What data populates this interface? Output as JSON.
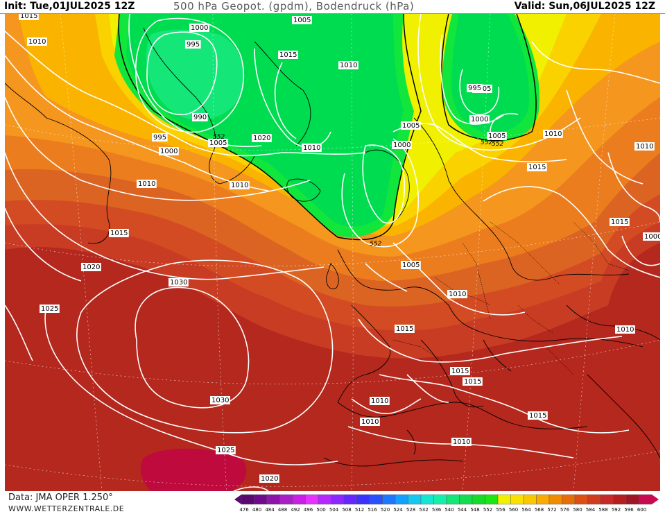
{
  "header": {
    "init": "Init: Tue,01JUL2025 12Z",
    "title": "500 hPa Geopot. (gpdm), Bodendruck (hPa)",
    "valid": "Valid: Sun,06JUL2025 12Z"
  },
  "footer": {
    "data_source": "Data: JMA OPER 1.250°",
    "website": "WWW.WETTERZENTRALE.DE"
  },
  "legend": {
    "values": [
      "476",
      "480",
      "484",
      "488",
      "492",
      "496",
      "500",
      "504",
      "508",
      "512",
      "516",
      "520",
      "524",
      "528",
      "532",
      "536",
      "540",
      "544",
      "548",
      "552",
      "556",
      "560",
      "564",
      "568",
      "572",
      "576",
      "580",
      "584",
      "588",
      "592",
      "596",
      "600"
    ],
    "colors": [
      "#5a0a6e",
      "#6e0a8c",
      "#8c14a8",
      "#aa1ec8",
      "#c81ee6",
      "#e632ff",
      "#b428ff",
      "#8c28ff",
      "#6428ff",
      "#3c32ff",
      "#2850ff",
      "#1e78ff",
      "#14a0ff",
      "#14c8f0",
      "#14e6d2",
      "#14f0aa",
      "#14e678",
      "#14dc50",
      "#14dc28",
      "#1ee614",
      "#f0f000",
      "#fae100",
      "#fac800",
      "#faaa00",
      "#f08c00",
      "#e66e0a",
      "#dc5014",
      "#d23c1e",
      "#c82828",
      "#b41e1e",
      "#a01428",
      "#c80a50"
    ]
  },
  "map": {
    "height_colors": {
      "h552": "#00dc50",
      "h556": "#10e63c",
      "h560": "#f0f000",
      "h564": "#fad200",
      "h568": "#fab400",
      "h572": "#f5961e",
      "h576": "#eb7d1e",
      "h580": "#dc6423",
      "h584": "#d24b23",
      "h588": "#c83c23",
      "h592": "#b9281e",
      "h596": "#aa1e23",
      "h600": "#be0a3c"
    },
    "height_labels": [
      "552",
      "552",
      "552",
      "552"
    ],
    "pressure_labels": [
      "1015",
      "1010",
      "1005",
      "1000",
      "995",
      "1015",
      "1010",
      "1005",
      "995",
      "1000",
      "1005",
      "1005",
      "1010",
      "990",
      "995",
      "1000",
      "1010",
      "1020",
      "1005",
      "1010",
      "1000",
      "1010",
      "1015",
      "1015",
      "1000",
      "1020",
      "1030",
      "1025",
      "1005",
      "1010",
      "1015",
      "1015",
      "1015",
      "1010",
      "1010",
      "1010",
      "1010",
      "1015",
      "1030",
      "1025",
      "1020",
      "1010",
      "1015"
    ]
  }
}
